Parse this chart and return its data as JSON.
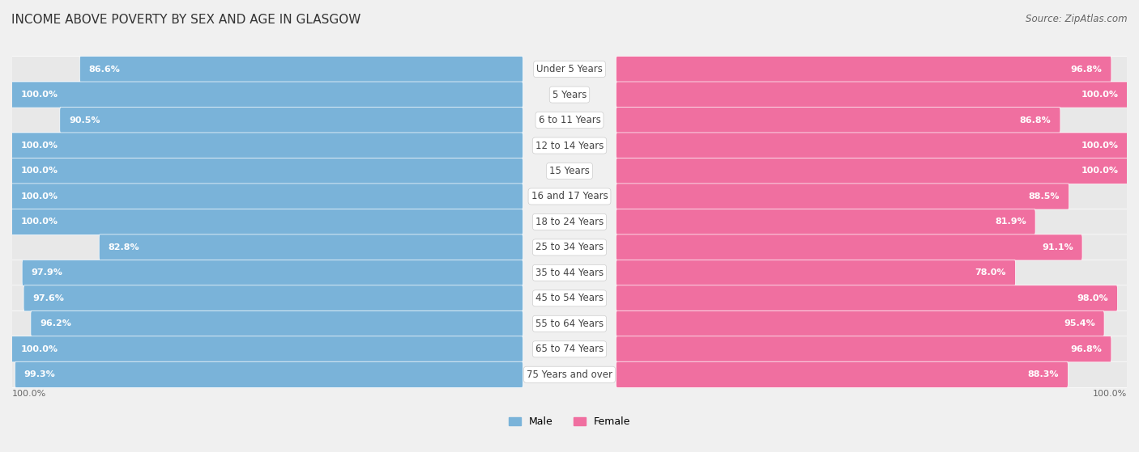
{
  "title": "INCOME ABOVE POVERTY BY SEX AND AGE IN GLASGOW",
  "source": "Source: ZipAtlas.com",
  "categories": [
    "Under 5 Years",
    "5 Years",
    "6 to 11 Years",
    "12 to 14 Years",
    "15 Years",
    "16 and 17 Years",
    "18 to 24 Years",
    "25 to 34 Years",
    "35 to 44 Years",
    "45 to 54 Years",
    "55 to 64 Years",
    "65 to 74 Years",
    "75 Years and over"
  ],
  "male_values": [
    86.6,
    100.0,
    90.5,
    100.0,
    100.0,
    100.0,
    100.0,
    82.8,
    97.9,
    97.6,
    96.2,
    100.0,
    99.3
  ],
  "female_values": [
    96.8,
    100.0,
    86.8,
    100.0,
    100.0,
    88.5,
    81.9,
    91.1,
    78.0,
    98.0,
    95.4,
    96.8,
    88.3
  ],
  "male_color": "#7ab3d9",
  "male_color_light": "#c5dff0",
  "female_color": "#f06fa0",
  "female_color_light": "#f9c0d6",
  "male_label": "Male",
  "female_label": "Female",
  "bg_color": "#f0f0f0",
  "bar_track_color": "#e8e8e8",
  "label_fontsize": 8.5,
  "value_fontsize": 8.0,
  "tick_fontsize": 8.0,
  "source_fontsize": 8.5,
  "title_fontsize": 11
}
